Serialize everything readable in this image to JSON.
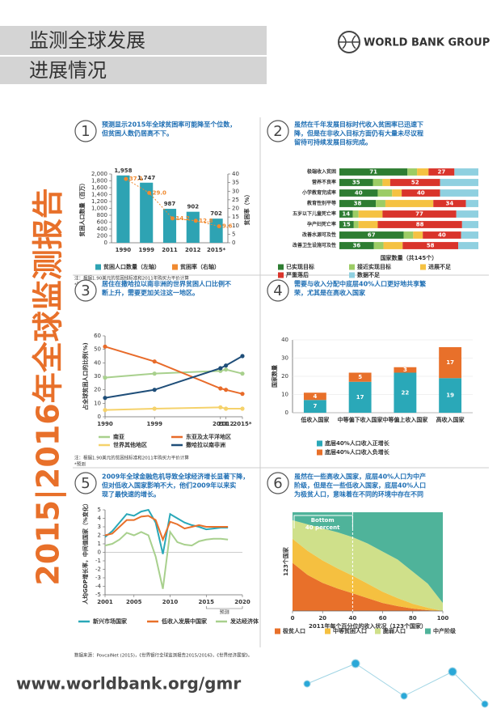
{
  "header": {
    "title_lines": [
      "监测全球发展",
      "进展情况"
    ],
    "logo_text": "WORLD BANK GROUP"
  },
  "side_title": "2015|2016年全球监测报告",
  "chart_data": [
    {
      "type": "bar",
      "panel_number": "1",
      "caption": [
        "预测显示2015年全球贫困率可能降至个位数，",
        "但贫困人数仍居高不下。"
      ],
      "categories": [
        "1990",
        "1999",
        "2011",
        "2012",
        "2015*"
      ],
      "series": [
        {
          "name": "贫困人口数量（左轴）",
          "color": "#2ea3b3",
          "values": [
            1958,
            1747,
            987,
            902,
            702
          ],
          "value_labels": [
            "1,958",
            "1,747",
            "987",
            "902",
            "702"
          ]
        },
        {
          "name": "贫困率（右轴）",
          "type": "line",
          "axis": "y2",
          "color": "#f08a30",
          "values": [
            37.1,
            29.0,
            14.2,
            12.8,
            9.6
          ],
          "value_labels": [
            "37.1",
            "29.0",
            "14.2",
            "12.8",
            "9.6"
          ]
        }
      ],
      "ylabel": "贫困人口数量（百万）",
      "y2label": "贫困率（%）",
      "ylim": [
        0,
        2000
      ],
      "yticks": [
        0,
        200,
        400,
        600,
        800,
        {
          "value": 1000,
          "label": "1,000"
        },
        {
          "value": 1200,
          "label": "1,200"
        },
        {
          "value": 1400,
          "label": "1,400"
        },
        {
          "value": 1600,
          "label": "1,600"
        },
        {
          "value": 1800,
          "label": "1,800"
        },
        {
          "value": 2000,
          "label": "2,000"
        }
      ],
      "y2lim": [
        0,
        40
      ],
      "y2ticks": [
        0,
        5,
        10,
        15,
        20,
        25,
        30,
        35,
        40
      ],
      "notes": [
        "注：根据1.90美元的贫困线标准和2011年购买力平价计算",
        "*预测"
      ]
    },
    {
      "type": "barh",
      "panel_number": "2",
      "caption": [
        "虽然在千年发展目标时代收入贫困率已迅速下",
        "降，但是在非收入目标方面仍有大量未尽议程",
        "留待可持续发展目标完成。"
      ],
      "categories": [
        "极端收入贫困",
        "营养不良率",
        "小学教育完成率",
        "教育性别平等",
        "五岁以下儿童死亡率",
        "孕产妇死亡率",
        "改善水源可及性",
        "改善卫生设施可及性"
      ],
      "series": [
        {
          "name": "已实现目标",
          "color": "#2e7d32",
          "show_labels": true,
          "values": [
            71,
            35,
            40,
            38,
            14,
            15,
            67,
            36
          ]
        },
        {
          "name": "接近实现目标",
          "color": "#9ccc65",
          "values": [
            10,
            10,
            15,
            10,
            6,
            5,
            10,
            10
          ]
        },
        {
          "name": "进展不足",
          "color": "#f5c242",
          "values": [
            12,
            8,
            10,
            50,
            25,
            20,
            10,
            20
          ]
        },
        {
          "name": "严重落后",
          "color": "#d9342b",
          "show_labels": true,
          "values": [
            27,
            52,
            40,
            34,
            77,
            88,
            40,
            58
          ]
        },
        {
          "name": "数据不足",
          "color": "#8fd0e0",
          "values": [
            25,
            40,
            40,
            13,
            23,
            17,
            18,
            21
          ]
        }
      ],
      "xlabel": "国家数量（共145个）",
      "xlim": [
        0,
        145
      ]
    },
    {
      "type": "line",
      "panel_number": "3",
      "markers": true,
      "caption": [
        "居住在撒哈拉以南非洲的世界贫困人口比例不",
        "断上升，需要更加关注这一地区。"
      ],
      "x": [
        1990,
        1999,
        2011,
        2012,
        2015
      ],
      "xlim": [
        1990,
        2015
      ],
      "xticks": [
        1990,
        1999,
        2011,
        2012,
        {
          "value": 2015,
          "label": "2015*"
        }
      ],
      "ylim": [
        0,
        60
      ],
      "yticks": [
        0,
        10,
        20,
        30,
        40,
        50,
        60
      ],
      "ylabel": "占全球贫困人口的比例(%)",
      "series": [
        {
          "name": "南亚",
          "color": "#a8d08d",
          "values": [
            29,
            32,
            34,
            35,
            32
          ]
        },
        {
          "name": "东亚及太平洋地区",
          "color": "#e86b2a",
          "values": [
            52,
            41,
            21,
            20,
            17
          ]
        },
        {
          "name": "世界其他地区",
          "color": "#f5d26b",
          "values": [
            5,
            6,
            7,
            6,
            6
          ]
        },
        {
          "name": "撒哈拉以南非洲",
          "color": "#1f4e79",
          "values": [
            14,
            20,
            36,
            38,
            45
          ]
        }
      ],
      "notes": [
        "注：根据1.90美元的贫困线标准和2011年购买力平价计算",
        "*预测"
      ]
    },
    {
      "type": "stackedbar",
      "panel_number": "4",
      "caption": [
        "需要与收入分配中底层40%人口更好地共享繁",
        "荣，尤其是在高收入国家"
      ],
      "categories": [
        "低收入国家",
        "中等偏下收入国家",
        "中等偏上收入国家",
        "高收入国家"
      ],
      "series": [
        {
          "name": "底层40%人口收入正增长",
          "color": "#2aa8b8",
          "values": [
            7,
            17,
            22,
            19
          ]
        },
        {
          "name": "底层40%人口收入负增长",
          "color": "#e8702a",
          "values": [
            4,
            5,
            3,
            17
          ]
        }
      ],
      "ylabel": "国家数量",
      "ylim": [
        0,
        40
      ],
      "yticks": [
        0,
        10,
        20,
        30,
        40
      ]
    },
    {
      "type": "line",
      "panel_number": "5",
      "caption": [
        "2009年全球金融危机导致全球经济增长显著下降，",
        "但对低收入国家影响不大，他们2009年以来实",
        "现了最快速的增长。"
      ],
      "x": [
        2001,
        2002,
        2003,
        2004,
        2005,
        2006,
        2007,
        2008,
        2009,
        2010,
        2011,
        2012,
        2013,
        2014,
        2015,
        2016,
        2017,
        2018
      ],
      "xlim": [
        2001,
        2020
      ],
      "xticks": [
        2001,
        2005,
        2010,
        2015,
        2020
      ],
      "ylim": [
        -5,
        5
      ],
      "yticks": [
        -5,
        -4,
        -3,
        -2,
        -1,
        0,
        1,
        2,
        3,
        4,
        5
      ],
      "ylabel": "人均GDP增长率，中间值国家（%变化）",
      "annotation": "预测",
      "series": [
        {
          "name": "新兴市场国家",
          "color": "#2aa8b8",
          "values": [
            1.8,
            2.5,
            3.5,
            4.5,
            4.3,
            4.8,
            5.0,
            3.5,
            -0.2,
            4.5,
            4.0,
            3.5,
            3.2,
            3.0,
            2.7,
            2.8,
            2.9,
            2.9
          ]
        },
        {
          "name": "低收入发展中国家",
          "color": "#e8702a",
          "values": [
            2.0,
            2.2,
            3.0,
            3.8,
            3.8,
            4.2,
            4.3,
            3.8,
            1.5,
            3.6,
            3.3,
            2.8,
            3.0,
            3.2,
            3.0,
            3.0,
            3.0,
            3.0
          ]
        },
        {
          "name": "发达经济体",
          "color": "#a8d08d",
          "values": [
            0.8,
            1.0,
            1.5,
            2.3,
            2.0,
            2.4,
            2.0,
            -0.5,
            -4.3,
            2.4,
            1.2,
            0.9,
            0.8,
            1.3,
            1.5,
            1.6,
            1.6,
            1.5
          ]
        }
      ]
    },
    {
      "type": "area",
      "panel_number": "6",
      "caption": [
        "虽然在一些高收入国家，底层40%人口为中产",
        "阶级，但是在一些低收入国家，底层40%人口",
        "为极贫人口，意味着在不同的环境中存在不同"
      ],
      "x": [
        0,
        10,
        20,
        30,
        40,
        50,
        60,
        70,
        80,
        90,
        100
      ],
      "xlim": [
        0,
        100
      ],
      "xticks": [
        0,
        20,
        40,
        60,
        80,
        100
      ],
      "ylim": [
        0,
        123
      ],
      "ylabel": "123个国家",
      "xlabel": "2011年每个百分位的收入状况（123个国家）",
      "annotation": [
        "Bottom",
        "40 percent"
      ],
      "series": [
        {
          "name": "极贫人口",
          "color": "#e8702a",
          "values": [
            60,
            45,
            35,
            28,
            22,
            16,
            10,
            6,
            3,
            1,
            0
          ]
        },
        {
          "name": "中等贫困人口",
          "color": "#f5c040",
          "values": [
            30,
            30,
            28,
            25,
            22,
            18,
            14,
            10,
            6,
            3,
            0
          ]
        },
        {
          "name": "脆弱人口",
          "color": "#cfe08a",
          "values": [
            23,
            33,
            40,
            45,
            48,
            50,
            50,
            48,
            40,
            30,
            10
          ]
        },
        {
          "name": "中产阶级",
          "color": "#4fb39a",
          "values": [
            10,
            15,
            20,
            25,
            31,
            39,
            49,
            59,
            74,
            89,
            113
          ]
        }
      ]
    }
  ],
  "footer": {
    "source": "数据来源：PovcalNet (2015)，《世界银行全球监测报告2015/2016》，《世界经济展望》。",
    "url": "www.worldbank.org/gmr"
  }
}
